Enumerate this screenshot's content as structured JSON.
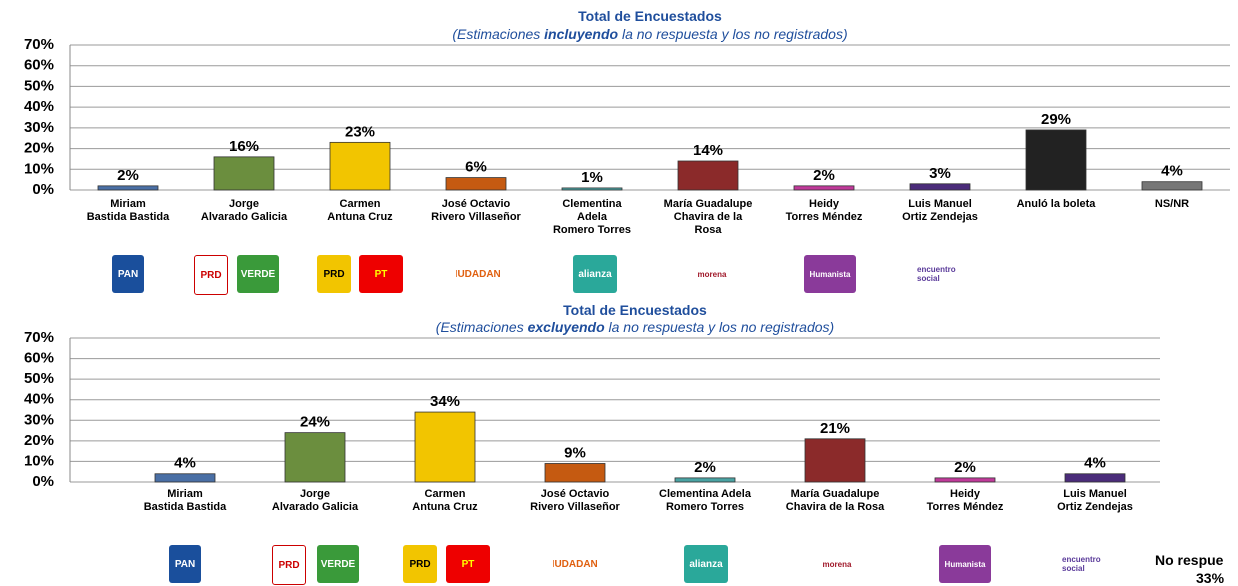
{
  "chart_data": [
    {
      "type": "bar",
      "title": "Total de Encuestados",
      "subtitle": [
        "(Estimaciones ",
        "incluyendo",
        " la no respuesta y los no registrados)"
      ],
      "categories": [
        "Miriam\nBastida Bastida",
        "Jorge\nAlvarado Galicia",
        "Carmen\nAntuna Cruz",
        "José Octavio\nRivero Villaseñor",
        "Clementina\nAdela\nRomero Torres",
        "María Guadalupe\nChavira de la\nRosa",
        "Heidy\nTorres Méndez",
        "Luis Manuel\nOrtiz Zendejas",
        "Anuló la boleta",
        "NS/NR"
      ],
      "values": [
        2,
        16,
        23,
        6,
        1,
        14,
        2,
        3,
        29,
        4
      ],
      "value_labels": [
        "2%",
        "16%",
        "23%",
        "6%",
        "1%",
        "14%",
        "2%",
        "3%",
        "29%",
        "4%"
      ],
      "colors": [
        "#4a6fa5",
        "#6b8e3e",
        "#f2c500",
        "#c55a11",
        "#4aa3a3",
        "#8b2a2a",
        "#c03a9a",
        "#4b2c7a",
        "#222222",
        "#777777"
      ],
      "ylim": [
        0,
        70
      ],
      "yticks": [
        {
          "value": 0,
          "label": "0%"
        },
        {
          "value": 10,
          "label": "10%"
        },
        {
          "value": 20,
          "label": "20%"
        },
        {
          "value": 30,
          "label": "30%"
        },
        {
          "value": 40,
          "label": "40%"
        },
        {
          "value": 50,
          "label": "50%"
        },
        {
          "value": 60,
          "label": "60%"
        },
        {
          "value": 70,
          "label": "70%"
        }
      ],
      "grid": true,
      "logos": [
        "PAN",
        "PRD",
        "VERDE",
        "PRD",
        "PT",
        "CIUDADANO",
        "alianza",
        "morena",
        "Humanista",
        "encuentro social"
      ]
    },
    {
      "type": "bar",
      "title": "Total de Encuestados",
      "subtitle": [
        "(Estimaciones ",
        "excluyendo",
        " la no respuesta y los no registrados)"
      ],
      "categories": [
        "Miriam\nBastida Bastida",
        "Jorge\nAlvarado Galicia",
        "Carmen\nAntuna Cruz",
        "José Octavio\nRivero Villaseñor",
        "Clementina Adela\nRomero Torres",
        "María Guadalupe\nChavira de la Rosa",
        "Heidy\nTorres Méndez",
        "Luis Manuel\nOrtiz Zendejas"
      ],
      "values": [
        4,
        24,
        34,
        9,
        2,
        21,
        2,
        4
      ],
      "value_labels": [
        "4%",
        "24%",
        "34%",
        "9%",
        "2%",
        "21%",
        "2%",
        "4%"
      ],
      "colors": [
        "#4a6fa5",
        "#6b8e3e",
        "#f2c500",
        "#c55a11",
        "#4aa3a3",
        "#8b2a2a",
        "#c03a9a",
        "#4b2c7a"
      ],
      "ylim": [
        0,
        70
      ],
      "yticks": [
        {
          "value": 0,
          "label": "0%"
        },
        {
          "value": 10,
          "label": "10%"
        },
        {
          "value": 20,
          "label": "20%"
        },
        {
          "value": 30,
          "label": "30%"
        },
        {
          "value": 40,
          "label": "40%"
        },
        {
          "value": 50,
          "label": "50%"
        },
        {
          "value": 60,
          "label": "60%"
        },
        {
          "value": 70,
          "label": "70%"
        }
      ],
      "grid": true,
      "logos": [
        "PAN",
        "PRD",
        "VERDE",
        "PRD",
        "PT",
        "CIUDADANO",
        "alianza",
        "morena",
        "Humanista",
        "encuentro social"
      ],
      "annotations": [
        "No respue",
        "33%"
      ]
    }
  ]
}
